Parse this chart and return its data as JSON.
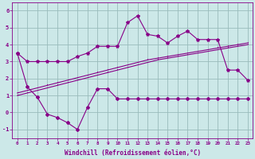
{
  "xlabel": "Windchill (Refroidissement éolien,°C)",
  "hours": [
    0,
    1,
    2,
    3,
    4,
    5,
    6,
    7,
    8,
    9,
    10,
    11,
    12,
    13,
    14,
    15,
    16,
    17,
    18,
    19,
    20,
    21,
    22,
    23
  ],
  "line_temp": [
    3.5,
    3.0,
    3.0,
    3.0,
    3.0,
    3.0,
    3.3,
    3.5,
    3.9,
    3.9,
    3.9,
    5.3,
    5.7,
    4.6,
    4.5,
    4.1,
    4.5,
    4.8,
    4.3,
    4.3,
    4.3,
    2.5,
    2.5,
    1.9
  ],
  "line_trend1": [
    1.0,
    1.15,
    1.3,
    1.45,
    1.6,
    1.75,
    1.9,
    2.05,
    2.2,
    2.35,
    2.5,
    2.65,
    2.8,
    2.95,
    3.1,
    3.2,
    3.3,
    3.4,
    3.5,
    3.6,
    3.7,
    3.8,
    3.9,
    4.0
  ],
  "line_trend2": [
    1.15,
    1.3,
    1.45,
    1.6,
    1.75,
    1.9,
    2.05,
    2.2,
    2.35,
    2.5,
    2.65,
    2.8,
    2.95,
    3.1,
    3.2,
    3.3,
    3.4,
    3.5,
    3.6,
    3.7,
    3.8,
    3.9,
    4.0,
    4.1
  ],
  "line_windchill": [
    3.5,
    1.5,
    0.9,
    -0.1,
    -0.3,
    -0.6,
    -1.0,
    0.3,
    1.4,
    1.4,
    0.8,
    0.8,
    0.8,
    0.8,
    0.8,
    0.8,
    0.8,
    0.8,
    0.8,
    0.8,
    0.8,
    0.8,
    0.8,
    0.8
  ],
  "color": "#880088",
  "bg_color": "#cce8e8",
  "grid_color": "#99bbbb",
  "ylim": [
    -1.5,
    6.5
  ],
  "xlim": [
    -0.5,
    23.5
  ],
  "yticks": [
    -1,
    0,
    1,
    2,
    3,
    4,
    5,
    6
  ]
}
